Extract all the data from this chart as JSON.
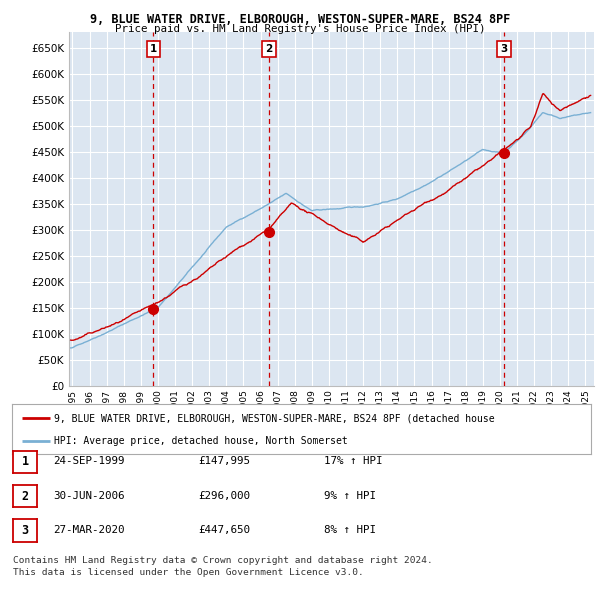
{
  "title_line1": "9, BLUE WATER DRIVE, ELBOROUGH, WESTON-SUPER-MARE, BS24 8PF",
  "title_line2": "Price paid vs. HM Land Registry's House Price Index (HPI)",
  "ylabel_ticks": [
    "£0",
    "£50K",
    "£100K",
    "£150K",
    "£200K",
    "£250K",
    "£300K",
    "£350K",
    "£400K",
    "£450K",
    "£500K",
    "£550K",
    "£600K",
    "£650K"
  ],
  "ytick_values": [
    0,
    50000,
    100000,
    150000,
    200000,
    250000,
    300000,
    350000,
    400000,
    450000,
    500000,
    550000,
    600000,
    650000
  ],
  "xlim_start": 1994.8,
  "xlim_end": 2025.5,
  "ylim_min": 0,
  "ylim_max": 680000,
  "sale_dates": [
    1999.73,
    2006.5,
    2020.23
  ],
  "sale_prices": [
    147995,
    296000,
    447650
  ],
  "sale_labels": [
    "1",
    "2",
    "3"
  ],
  "legend_line1": "9, BLUE WATER DRIVE, ELBOROUGH, WESTON-SUPER-MARE, BS24 8PF (detached house",
  "legend_line2": "HPI: Average price, detached house, North Somerset",
  "table_rows": [
    [
      "1",
      "24-SEP-1999",
      "£147,995",
      "17% ↑ HPI"
    ],
    [
      "2",
      "30-JUN-2006",
      "£296,000",
      "9% ↑ HPI"
    ],
    [
      "3",
      "27-MAR-2020",
      "£447,650",
      "8% ↑ HPI"
    ]
  ],
  "footer_line1": "Contains HM Land Registry data © Crown copyright and database right 2024.",
  "footer_line2": "This data is licensed under the Open Government Licence v3.0.",
  "red_color": "#cc0000",
  "blue_color": "#7ab0d4",
  "grid_color": "#cccccc",
  "background_color": "#dce6f1"
}
